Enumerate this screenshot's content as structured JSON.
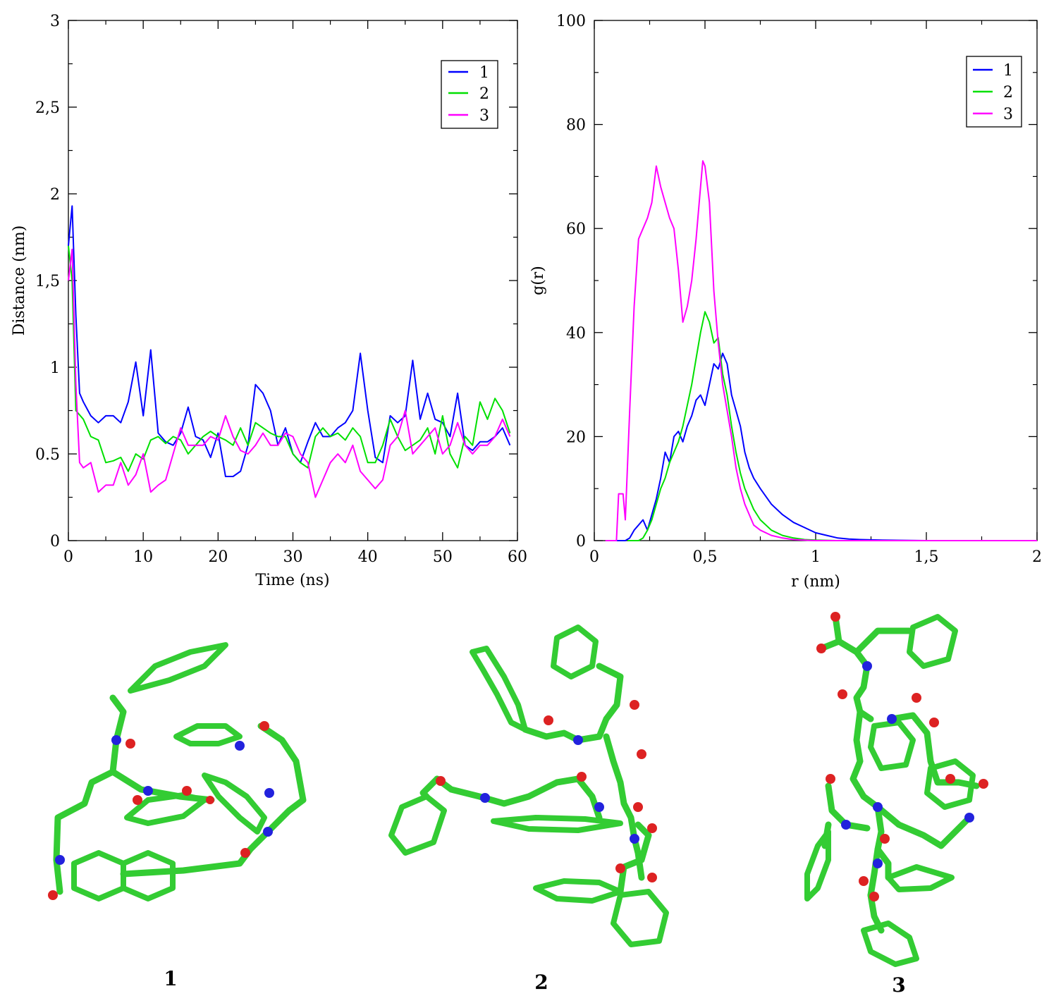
{
  "chart_data": [
    {
      "type": "line",
      "xlabel": "Time (ns)",
      "ylabel": "Distance (nm)",
      "xlim": [
        0,
        60
      ],
      "ylim": [
        0,
        3
      ],
      "xticks": [
        0,
        10,
        20,
        30,
        40,
        50,
        60
      ],
      "xtick_labels": [
        "0",
        "10",
        "20",
        "30",
        "40",
        "50",
        "60"
      ],
      "yticks": [
        0,
        0.5,
        1,
        1.5,
        2,
        2.5,
        3
      ],
      "ytick_labels": [
        "0",
        "0.5",
        "1",
        "1,5",
        "2",
        "2,5",
        "3"
      ],
      "grid": false,
      "legend": "top-right",
      "series": [
        {
          "name": "1",
          "color": "#0000ff",
          "x": [
            0,
            0.5,
            1,
            1.5,
            2,
            3,
            4,
            5,
            6,
            7,
            8,
            9,
            10,
            11,
            12,
            13,
            14,
            15,
            16,
            17,
            18,
            19,
            20,
            21,
            22,
            23,
            24,
            25,
            26,
            27,
            28,
            29,
            30,
            31,
            32,
            33,
            34,
            35,
            36,
            37,
            38,
            39,
            40,
            41,
            42,
            43,
            44,
            45,
            46,
            47,
            48,
            49,
            50,
            51,
            52,
            53,
            54,
            55,
            56,
            57,
            58,
            59
          ],
          "y": [
            1.7,
            1.93,
            1.3,
            0.85,
            0.8,
            0.72,
            0.68,
            0.72,
            0.72,
            0.68,
            0.8,
            1.03,
            0.72,
            1.1,
            0.62,
            0.57,
            0.55,
            0.62,
            0.77,
            0.6,
            0.58,
            0.48,
            0.62,
            0.37,
            0.37,
            0.4,
            0.55,
            0.9,
            0.85,
            0.75,
            0.55,
            0.65,
            0.5,
            0.45,
            0.57,
            0.68,
            0.6,
            0.6,
            0.65,
            0.68,
            0.75,
            1.08,
            0.75,
            0.48,
            0.45,
            0.72,
            0.68,
            0.72,
            1.04,
            0.7,
            0.85,
            0.7,
            0.68,
            0.6,
            0.85,
            0.55,
            0.52,
            0.57,
            0.57,
            0.6,
            0.65,
            0.55
          ]
        },
        {
          "name": "2",
          "color": "#00e000",
          "x": [
            0,
            0.5,
            1,
            2,
            3,
            4,
            5,
            6,
            7,
            8,
            9,
            10,
            11,
            12,
            13,
            14,
            15,
            16,
            17,
            18,
            19,
            20,
            21,
            22,
            23,
            24,
            25,
            26,
            27,
            28,
            29,
            30,
            31,
            32,
            33,
            34,
            35,
            36,
            37,
            38,
            39,
            40,
            41,
            42,
            43,
            44,
            45,
            46,
            47,
            48,
            49,
            50,
            51,
            52,
            53,
            54,
            55,
            56,
            57,
            58,
            59
          ],
          "y": [
            1.7,
            1.5,
            0.75,
            0.7,
            0.6,
            0.58,
            0.45,
            0.46,
            0.48,
            0.4,
            0.5,
            0.47,
            0.58,
            0.6,
            0.56,
            0.6,
            0.58,
            0.5,
            0.55,
            0.6,
            0.63,
            0.6,
            0.58,
            0.55,
            0.65,
            0.55,
            0.68,
            0.65,
            0.62,
            0.6,
            0.6,
            0.5,
            0.45,
            0.42,
            0.6,
            0.65,
            0.6,
            0.62,
            0.58,
            0.65,
            0.6,
            0.45,
            0.45,
            0.55,
            0.7,
            0.6,
            0.52,
            0.55,
            0.58,
            0.65,
            0.5,
            0.72,
            0.5,
            0.42,
            0.6,
            0.55,
            0.8,
            0.7,
            0.82,
            0.75,
            0.62
          ]
        },
        {
          "name": "3",
          "color": "#ff00ff",
          "x": [
            0,
            0.5,
            1,
            1.5,
            2,
            3,
            4,
            5,
            6,
            7,
            8,
            9,
            10,
            11,
            12,
            13,
            14,
            15,
            16,
            17,
            18,
            19,
            20,
            21,
            22,
            23,
            24,
            25,
            26,
            27,
            28,
            29,
            30,
            31,
            32,
            33,
            34,
            35,
            36,
            37,
            38,
            39,
            40,
            41,
            42,
            43,
            44,
            45,
            46,
            47,
            48,
            49,
            50,
            51,
            52,
            53,
            54,
            55,
            56,
            57,
            58,
            59
          ],
          "y": [
            1.5,
            1.68,
            0.9,
            0.45,
            0.42,
            0.45,
            0.28,
            0.32,
            0.32,
            0.45,
            0.32,
            0.38,
            0.5,
            0.28,
            0.32,
            0.35,
            0.5,
            0.65,
            0.55,
            0.55,
            0.55,
            0.6,
            0.58,
            0.72,
            0.6,
            0.52,
            0.5,
            0.55,
            0.62,
            0.55,
            0.55,
            0.62,
            0.6,
            0.5,
            0.45,
            0.25,
            0.35,
            0.45,
            0.5,
            0.45,
            0.55,
            0.4,
            0.35,
            0.3,
            0.35,
            0.55,
            0.6,
            0.75,
            0.5,
            0.55,
            0.6,
            0.65,
            0.5,
            0.55,
            0.68,
            0.55,
            0.5,
            0.55,
            0.55,
            0.6,
            0.7,
            0.6
          ]
        }
      ]
    },
    {
      "type": "line",
      "xlabel": "r (nm)",
      "ylabel": "g(r)",
      "xlim": [
        0,
        2
      ],
      "ylim": [
        0,
        100
      ],
      "xticks": [
        0,
        0.5,
        1,
        1.5,
        2
      ],
      "xtick_labels": [
        "0",
        "0,5",
        "1",
        "1,5",
        "2"
      ],
      "yticks": [
        0,
        20,
        40,
        60,
        80,
        100
      ],
      "ytick_labels": [
        "0",
        "20",
        "40",
        "60",
        "80",
        "100"
      ],
      "grid": false,
      "legend": "top-right",
      "series": [
        {
          "name": "1",
          "color": "#0000ff",
          "x": [
            0.1,
            0.14,
            0.16,
            0.18,
            0.2,
            0.22,
            0.24,
            0.26,
            0.28,
            0.3,
            0.32,
            0.34,
            0.36,
            0.38,
            0.4,
            0.42,
            0.44,
            0.46,
            0.48,
            0.5,
            0.52,
            0.54,
            0.56,
            0.58,
            0.6,
            0.62,
            0.64,
            0.66,
            0.68,
            0.7,
            0.72,
            0.75,
            0.8,
            0.85,
            0.9,
            0.95,
            1.0,
            1.05,
            1.1,
            1.15,
            1.2,
            1.3,
            1.5,
            1.8,
            2.0
          ],
          "y": [
            0,
            0,
            0.5,
            2,
            3,
            4,
            2,
            5,
            8,
            12,
            17,
            15,
            20,
            21,
            19,
            22,
            24,
            27,
            28,
            26,
            30,
            34,
            33,
            36,
            34,
            28,
            25,
            22,
            17,
            14,
            12,
            10,
            7,
            5,
            3.5,
            2.5,
            1.5,
            1,
            0.5,
            0.3,
            0.2,
            0.1,
            0,
            0,
            0
          ]
        },
        {
          "name": "2",
          "color": "#00e000",
          "x": [
            0.15,
            0.2,
            0.22,
            0.24,
            0.26,
            0.28,
            0.3,
            0.32,
            0.34,
            0.36,
            0.38,
            0.4,
            0.42,
            0.44,
            0.46,
            0.48,
            0.5,
            0.52,
            0.54,
            0.56,
            0.58,
            0.6,
            0.62,
            0.64,
            0.66,
            0.68,
            0.7,
            0.72,
            0.75,
            0.8,
            0.85,
            0.9,
            0.95,
            1.0,
            1.1,
            1.3,
            1.6,
            2.0
          ],
          "y": [
            0,
            0,
            0.5,
            2,
            4,
            7,
            10,
            12,
            15,
            17,
            19,
            22,
            26,
            30,
            35,
            40,
            44,
            42,
            38,
            39,
            32,
            28,
            22,
            17,
            13,
            10,
            8,
            6,
            4,
            2,
            1,
            0.5,
            0.2,
            0.1,
            0,
            0,
            0,
            0
          ]
        },
        {
          "name": "3",
          "color": "#ff00ff",
          "x": [
            0.05,
            0.1,
            0.11,
            0.13,
            0.14,
            0.16,
            0.18,
            0.2,
            0.22,
            0.24,
            0.26,
            0.28,
            0.3,
            0.32,
            0.34,
            0.36,
            0.38,
            0.4,
            0.42,
            0.44,
            0.46,
            0.48,
            0.49,
            0.5,
            0.52,
            0.54,
            0.56,
            0.58,
            0.6,
            0.62,
            0.64,
            0.66,
            0.68,
            0.7,
            0.72,
            0.75,
            0.8,
            0.85,
            0.9,
            1.0,
            1.2,
            1.6,
            2.0
          ],
          "y": [
            0,
            0,
            9,
            9,
            4,
            25,
            45,
            58,
            60,
            62,
            65,
            72,
            68,
            65,
            62,
            60,
            52,
            42,
            45,
            50,
            58,
            68,
            73,
            72,
            65,
            48,
            38,
            30,
            25,
            20,
            14,
            10,
            7,
            5,
            3,
            2,
            1,
            0.5,
            0.2,
            0,
            0,
            0,
            0
          ]
        }
      ]
    }
  ],
  "structures": [
    {
      "label": "1"
    },
    {
      "label": "2"
    },
    {
      "label": "3"
    }
  ],
  "colors": {
    "carbon": "#33cc33",
    "nitrogen": "#2222dd",
    "oxygen": "#dd2222",
    "hydrogen": "#e6e6e6"
  }
}
